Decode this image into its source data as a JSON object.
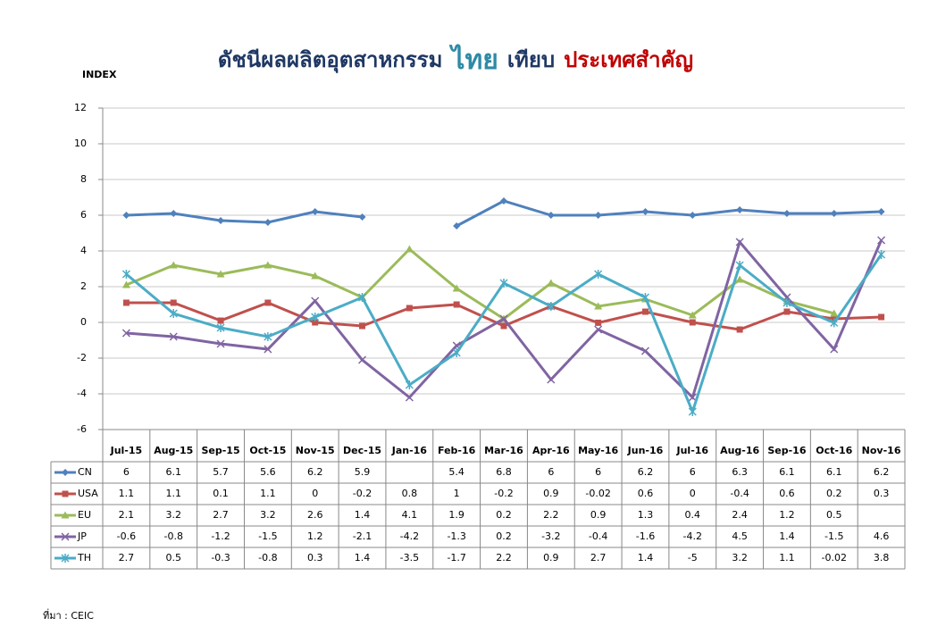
{
  "chart_data": {
    "type": "line",
    "title": [
      "ดัชนีผลผลิตอุตสาหกรรม",
      "ไทย",
      "เทียบ",
      "ประเทศสำคัญ"
    ],
    "title_colors": [
      "#1f3864",
      "#2e8ba6",
      "#1f3864",
      "#c00000"
    ],
    "y_label": "INDEX",
    "source": "ที่มา : CEIC",
    "categories": [
      "Jul-15",
      "Aug-15",
      "Sep-15",
      "Oct-15",
      "Nov-15",
      "Dec-15",
      "Jan-16",
      "Feb-16",
      "Mar-16",
      "Apr-16",
      "May-16",
      "Jun-16",
      "Jul-16",
      "Aug-16",
      "Sep-16",
      "Oct-16",
      "Nov-16"
    ],
    "series": [
      {
        "name": "CN",
        "color": "#4f81bd",
        "marker": "diamond",
        "values": [
          6,
          6.1,
          5.7,
          5.6,
          6.2,
          5.9,
          null,
          5.4,
          6.8,
          6,
          6,
          6.2,
          6,
          6.3,
          6.1,
          6.1,
          6.2
        ]
      },
      {
        "name": "USA",
        "color": "#c0504d",
        "marker": "square",
        "values": [
          1.1,
          1.1,
          0.1,
          1.1,
          0,
          -0.2,
          0.8,
          1,
          -0.2,
          0.9,
          -0.02,
          0.6,
          0,
          -0.4,
          0.6,
          0.2,
          0.3
        ]
      },
      {
        "name": "EU",
        "color": "#9bbb59",
        "marker": "triangle",
        "values": [
          2.1,
          3.2,
          2.7,
          3.2,
          2.6,
          1.4,
          4.1,
          1.9,
          0.2,
          2.2,
          0.9,
          1.3,
          0.4,
          2.4,
          1.2,
          0.5,
          null
        ]
      },
      {
        "name": "JP",
        "color": "#8064a2",
        "marker": "x",
        "values": [
          -0.6,
          -0.8,
          -1.2,
          -1.5,
          1.2,
          -2.1,
          -4.2,
          -1.3,
          0.2,
          -3.2,
          -0.4,
          -1.6,
          -4.2,
          4.5,
          1.4,
          -1.5,
          4.6
        ]
      },
      {
        "name": "TH",
        "color": "#4bacc6",
        "marker": "star",
        "values": [
          2.7,
          0.5,
          -0.3,
          -0.8,
          0.3,
          1.4,
          -3.5,
          -1.7,
          2.2,
          0.9,
          2.7,
          1.4,
          -5,
          3.2,
          1.1,
          -0.02,
          3.8
        ]
      }
    ],
    "ylim": [
      -6,
      12
    ],
    "yticks": [
      -6,
      -4,
      -2,
      0,
      2,
      4,
      6,
      8,
      10,
      12
    ],
    "grid": true
  }
}
